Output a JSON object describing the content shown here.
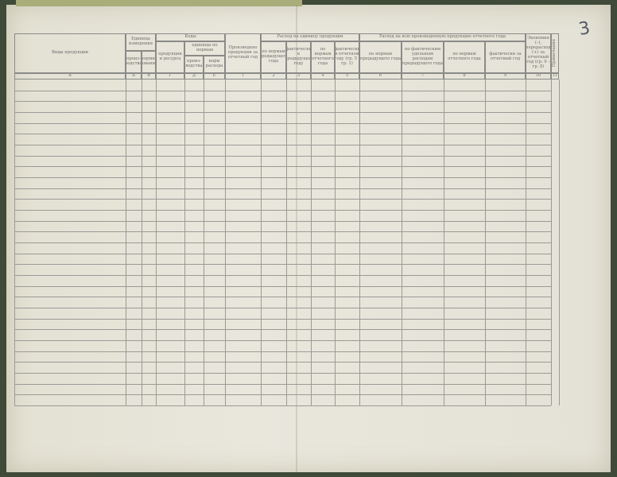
{
  "page_number": "3",
  "table": {
    "headers": {
      "product": "Виды продукции",
      "unit": {
        "title": "Единица измерения",
        "sub": [
          "произ-водства",
          "норми-рования"
        ]
      },
      "codes": {
        "title": "Коды",
        "product_resource": "продукции и ресурса",
        "units": {
          "title": "единицы по нормам",
          "sub": [
            "произ-водства",
            "норм расхода"
          ]
        }
      },
      "produced": "Произведено продукции за отчетный год",
      "per_unit": {
        "title": "Расход на единицу продукции",
        "sub": [
          "по нормам предыдущего года",
          "фактически в предыдущем году",
          "по нормам отчетного года",
          "фактически в отчетном году (гр. 5 : гр. 1)"
        ]
      },
      "total": {
        "title": "Расход на всю произведенную продукцию отчетного года",
        "sub": [
          "по нормам предыдущего года",
          "по фактическим удельным расходам предыдущего года",
          "по нормам отчетного года",
          "фактически за отчетный год"
        ]
      },
      "savings": "Экономия (–), перерасход (+) за отчетный год (гр. 9 – гр. 8)",
      "notes": "Примечания"
    },
    "column_numbers": [
      "А",
      "Б",
      "В",
      "Г",
      "Д",
      "Е",
      "1",
      "2",
      "3",
      "4",
      "5",
      "6",
      "7",
      "8",
      "9",
      "10",
      "11"
    ]
  }
}
